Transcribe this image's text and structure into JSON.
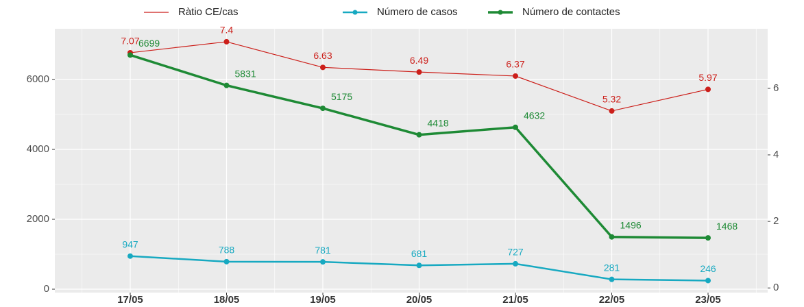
{
  "chart_data": {
    "type": "line",
    "categories": [
      "17/05",
      "18/05",
      "19/05",
      "20/05",
      "21/05",
      "22/05",
      "23/05"
    ],
    "series": [
      {
        "name": "Ràtio CE/cas",
        "color": "#cc1f1a",
        "axis": "y2",
        "values": [
          7.07,
          7.4,
          6.63,
          6.49,
          6.37,
          5.32,
          5.97
        ]
      },
      {
        "name": "Número de casos",
        "color": "#17a9c1",
        "values": [
          947,
          788,
          781,
          681,
          727,
          281,
          246
        ]
      },
      {
        "name": "Número de contactes",
        "color": "#1e8a35",
        "values": [
          6699,
          5831,
          5175,
          4418,
          4632,
          1496,
          1468
        ]
      }
    ],
    "ylim": [
      -98,
      7451
    ],
    "yticks": [
      0,
      2000,
      4000,
      6000
    ],
    "y2lim": [
      -0.14,
      7.79
    ],
    "y2ticks": [
      0,
      2,
      4,
      6
    ],
    "grid": true,
    "legend": "top"
  }
}
